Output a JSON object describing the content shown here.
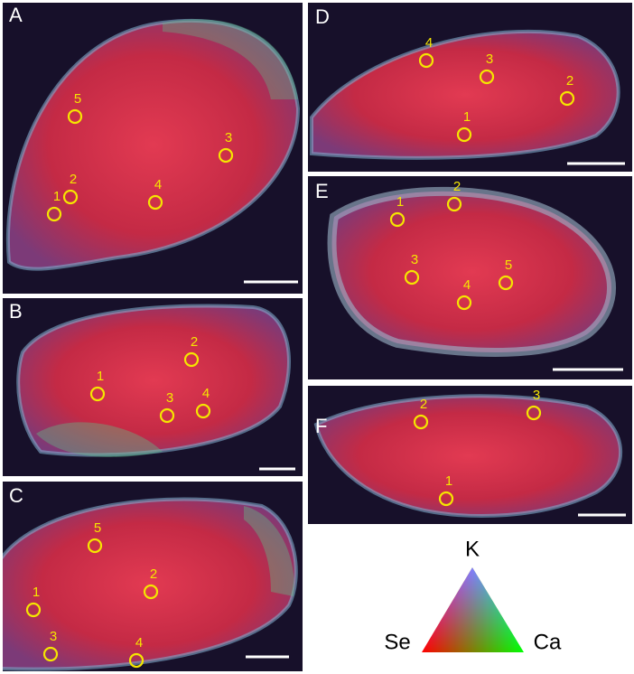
{
  "panels": [
    {
      "label": "A",
      "points": [
        "1",
        "2",
        "3",
        "4",
        "5"
      ]
    },
    {
      "label": "B",
      "points": [
        "1",
        "2",
        "3",
        "4"
      ]
    },
    {
      "label": "C",
      "points": [
        "1",
        "2",
        "3",
        "4",
        "5"
      ]
    },
    {
      "label": "D",
      "points": [
        "1",
        "2",
        "3",
        "4"
      ]
    },
    {
      "label": "E",
      "points": [
        "1",
        "2",
        "3",
        "4",
        "5"
      ]
    },
    {
      "label": "F",
      "points": [
        "1",
        "2",
        "3"
      ]
    }
  ],
  "legend": {
    "top": "K",
    "left": "Se",
    "right": "Ca"
  }
}
